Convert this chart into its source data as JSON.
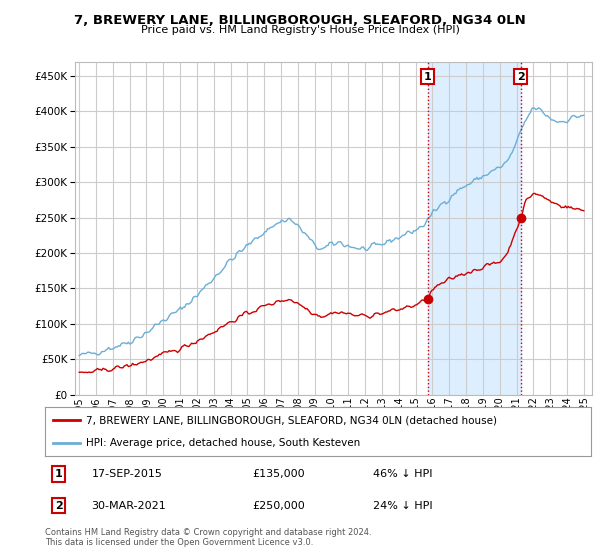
{
  "title": "7, BREWERY LANE, BILLINGBOROUGH, SLEAFORD, NG34 0LN",
  "subtitle": "Price paid vs. HM Land Registry's House Price Index (HPI)",
  "ytick_values": [
    0,
    50000,
    100000,
    150000,
    200000,
    250000,
    300000,
    350000,
    400000,
    450000
  ],
  "ylim": [
    0,
    470000
  ],
  "xlim_start": 1994.75,
  "xlim_end": 2025.5,
  "hpi_color": "#6baed6",
  "sale_color": "#cc0000",
  "sale1_x": 2015.72,
  "sale1_y": 135000,
  "sale2_x": 2021.25,
  "sale2_y": 250000,
  "annotation1_label": "1",
  "annotation2_label": "2",
  "legend_sale_label": "7, BREWERY LANE, BILLINGBOROUGH, SLEAFORD, NG34 0LN (detached house)",
  "legend_hpi_label": "HPI: Average price, detached house, South Kesteven",
  "footer": "Contains HM Land Registry data © Crown copyright and database right 2024.\nThis data is licensed under the Open Government Licence v3.0.",
  "background_color": "#ffffff",
  "plot_bg_color": "#ffffff",
  "grid_color": "#cccccc",
  "shaded_region_color": "#ddeeff",
  "vline_color": "#cc0000",
  "vline_style": ":",
  "x_tick_years": [
    1995,
    1996,
    1997,
    1998,
    1999,
    2000,
    2001,
    2002,
    2003,
    2004,
    2005,
    2006,
    2007,
    2008,
    2009,
    2010,
    2011,
    2012,
    2013,
    2014,
    2015,
    2016,
    2017,
    2018,
    2019,
    2020,
    2021,
    2022,
    2023,
    2024,
    2025
  ],
  "hpi_anchors_x": [
    1995,
    1996,
    1997,
    1998,
    1999,
    2000,
    2001,
    2002,
    2003,
    2004,
    2005,
    2006,
    2007,
    2007.5,
    2008,
    2008.5,
    2009,
    2009.5,
    2010,
    2010.5,
    2011,
    2011.5,
    2012,
    2012.5,
    2013,
    2013.5,
    2014,
    2014.5,
    2015,
    2015.5,
    2016,
    2016.5,
    2017,
    2017.5,
    2018,
    2018.5,
    2019,
    2019.5,
    2020,
    2020.5,
    2021,
    2021.5,
    2022,
    2022.5,
    2023,
    2023.5,
    2024,
    2024.5,
    2025
  ],
  "hpi_anchors_y": [
    55000,
    60000,
    67000,
    75000,
    88000,
    105000,
    120000,
    140000,
    165000,
    190000,
    210000,
    230000,
    245000,
    248000,
    238000,
    225000,
    210000,
    205000,
    212000,
    215000,
    210000,
    207000,
    205000,
    208000,
    212000,
    218000,
    222000,
    228000,
    232000,
    240000,
    255000,
    268000,
    278000,
    288000,
    295000,
    302000,
    308000,
    315000,
    320000,
    330000,
    355000,
    385000,
    405000,
    400000,
    390000,
    385000,
    388000,
    392000,
    395000
  ],
  "red_anchors_x_seg1": [
    1995,
    1996,
    1997,
    1998,
    1999,
    2000,
    2001,
    2002,
    2003,
    2004,
    2005,
    2006,
    2007,
    2007.5,
    2008,
    2008.5,
    2009,
    2009.5,
    2010,
    2010.5,
    2011,
    2011.5,
    2012,
    2012.5,
    2013,
    2013.5,
    2014,
    2014.5,
    2015,
    2015.72
  ],
  "red_anchors_y_seg1": [
    30000,
    33000,
    37000,
    41000,
    48000,
    57000,
    65000,
    76000,
    89000,
    103000,
    115000,
    125000,
    133000,
    135000,
    129000,
    122000,
    114000,
    111000,
    115000,
    117000,
    114000,
    112000,
    111000,
    113000,
    115000,
    118000,
    120000,
    124000,
    126000,
    135000
  ],
  "red_anchors_x_seg2": [
    2015.72,
    2016,
    2016.5,
    2017,
    2017.5,
    2018,
    2018.5,
    2019,
    2019.5,
    2020,
    2020.5,
    2021.25
  ],
  "red_anchors_y_seg2": [
    135000,
    148000,
    156000,
    162000,
    168000,
    172000,
    176000,
    180000,
    184000,
    187000,
    202000,
    250000
  ],
  "red_anchors_x_seg3": [
    2021.25,
    2021.5,
    2022,
    2022.5,
    2023,
    2023.5,
    2024,
    2024.5,
    2025
  ],
  "red_anchors_y_seg3": [
    250000,
    270000,
    285000,
    280000,
    273000,
    268000,
    265000,
    262000,
    260000
  ]
}
